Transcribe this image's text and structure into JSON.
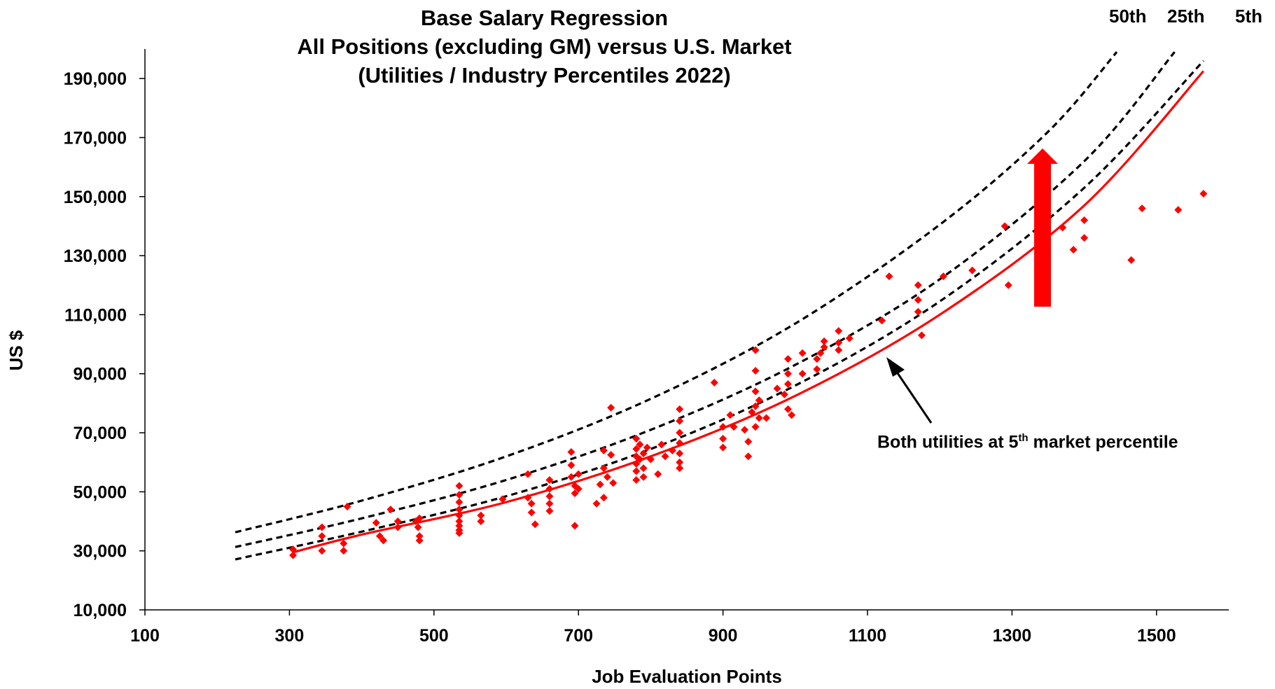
{
  "chart_data": {
    "type": "scatter",
    "title": "Base Salary Regression",
    "subtitle": "All Positions (excluding GM) versus U.S. Market",
    "subtitle2": "(Utilities / Industry Percentiles 2022)",
    "xlabel": "Job Evaluation Points",
    "ylabel": "US $",
    "xlim": [
      100,
      1600
    ],
    "ylim": [
      10000,
      200000
    ],
    "xticks": [
      100,
      300,
      500,
      700,
      900,
      1100,
      1300,
      1500
    ],
    "xtick_labels": [
      "100",
      "300",
      "500",
      "700",
      "900",
      "1100",
      "1300",
      "1500"
    ],
    "yticks": [
      10000,
      30000,
      50000,
      70000,
      90000,
      110000,
      130000,
      150000,
      170000,
      190000
    ],
    "ytick_labels": [
      "10,000",
      "30,000",
      "50,000",
      "70,000",
      "90,000",
      "110,000",
      "130,000",
      "150,000",
      "170,000",
      "190,000"
    ],
    "grid": false,
    "percentile_labels": [
      "50th",
      "25th",
      "5th"
    ],
    "annotation": {
      "text": "Both utilities at 5",
      "sup": "th",
      "text_after": " market percentile"
    },
    "series": [
      {
        "name": "50th",
        "kind": "dashed-line",
        "color": "#000000",
        "x": [
          225,
          400,
          600,
          800,
          1000,
          1200,
          1350,
          1445
        ],
        "y": [
          36300,
          47000,
          62000,
          81500,
          107000,
          140500,
          172000,
          199000
        ]
      },
      {
        "name": "25th",
        "kind": "dashed-line",
        "color": "#000000",
        "x": [
          225,
          400,
          600,
          800,
          1000,
          1200,
          1400,
          1525
        ],
        "y": [
          31300,
          41000,
          54000,
          71000,
          93000,
          122000,
          162000,
          199000
        ]
      },
      {
        "name": "5th",
        "kind": "dashed-line",
        "color": "#000000",
        "x": [
          225,
          400,
          600,
          800,
          1000,
          1200,
          1400,
          1565
        ],
        "y": [
          27100,
          36500,
          48500,
          64500,
          86000,
          114500,
          153000,
          196000
        ]
      },
      {
        "kind": "line",
        "color": "#ff0000",
        "x": [
          305,
          400,
          600,
          800,
          1000,
          1200,
          1400,
          1565
        ],
        "y": [
          29500,
          35500,
          46500,
          62000,
          82500,
          110000,
          147000,
          192500
        ]
      },
      {
        "kind": "scatter",
        "color": "#ff0000",
        "x": [
          305,
          305,
          345,
          345,
          345,
          375,
          375,
          380,
          420,
          425,
          430,
          440,
          450,
          450,
          475,
          478,
          480,
          480,
          480,
          535,
          535,
          535,
          535,
          535,
          535,
          535,
          535,
          535,
          565,
          565,
          595,
          630,
          630,
          635,
          635,
          640,
          660,
          660,
          660,
          660,
          660,
          690,
          690,
          690,
          695,
          695,
          695,
          700,
          700,
          725,
          730,
          735,
          735,
          735,
          740,
          745,
          745,
          748,
          780,
          780,
          780,
          780,
          780,
          780,
          785,
          785,
          790,
          790,
          790,
          795,
          800,
          810,
          815,
          820,
          830,
          840,
          840,
          840,
          840,
          840,
          840,
          840,
          888,
          900,
          900,
          900,
          910,
          915,
          930,
          935,
          935,
          940,
          945,
          945,
          945,
          945,
          945,
          950,
          950,
          960,
          975,
          985,
          990,
          990,
          990,
          990,
          995,
          1010,
          1010,
          1030,
          1030,
          1035,
          1040,
          1040,
          1060,
          1060,
          1060,
          1075,
          1120,
          1130,
          1170,
          1170,
          1170,
          1175,
          1205,
          1245,
          1290,
          1295,
          1370,
          1385,
          1400,
          1400,
          1465,
          1480,
          1530,
          1565
        ],
        "y": [
          30500,
          28500,
          38000,
          35000,
          30000,
          32500,
          30000,
          45000,
          39500,
          35000,
          33500,
          44000,
          40000,
          38000,
          40000,
          38000,
          35000,
          33500,
          41000,
          52000,
          49000,
          46500,
          44000,
          42000,
          40000,
          38500,
          37000,
          36000,
          42000,
          40000,
          47500,
          56000,
          48000,
          46000,
          43000,
          39000,
          54000,
          51000,
          48500,
          46000,
          43500,
          63500,
          59000,
          55000,
          52000,
          49500,
          38500,
          56000,
          51000,
          46000,
          52500,
          64000,
          58000,
          48000,
          55000,
          62500,
          78500,
          53000,
          68000,
          64500,
          62000,
          59500,
          57000,
          54000,
          66000,
          61000,
          63000,
          58000,
          55000,
          65000,
          61000,
          56000,
          66000,
          62000,
          64000,
          78000,
          74000,
          70000,
          66500,
          63000,
          60000,
          58000,
          87000,
          72000,
          68000,
          65000,
          76000,
          72000,
          71000,
          67000,
          62000,
          77000,
          98000,
          91000,
          84000,
          79000,
          72000,
          81000,
          75000,
          75000,
          85000,
          83000,
          95000,
          90000,
          86500,
          78000,
          76000,
          97000,
          90000,
          95000,
          91500,
          97000,
          101000,
          99000,
          104500,
          100500,
          98000,
          102000,
          108000,
          123000,
          120000,
          115000,
          111000,
          103000,
          123000,
          125000,
          140000,
          120000,
          139500,
          132000,
          142000,
          136000,
          128500,
          146000,
          145500,
          151000
        ]
      }
    ]
  }
}
